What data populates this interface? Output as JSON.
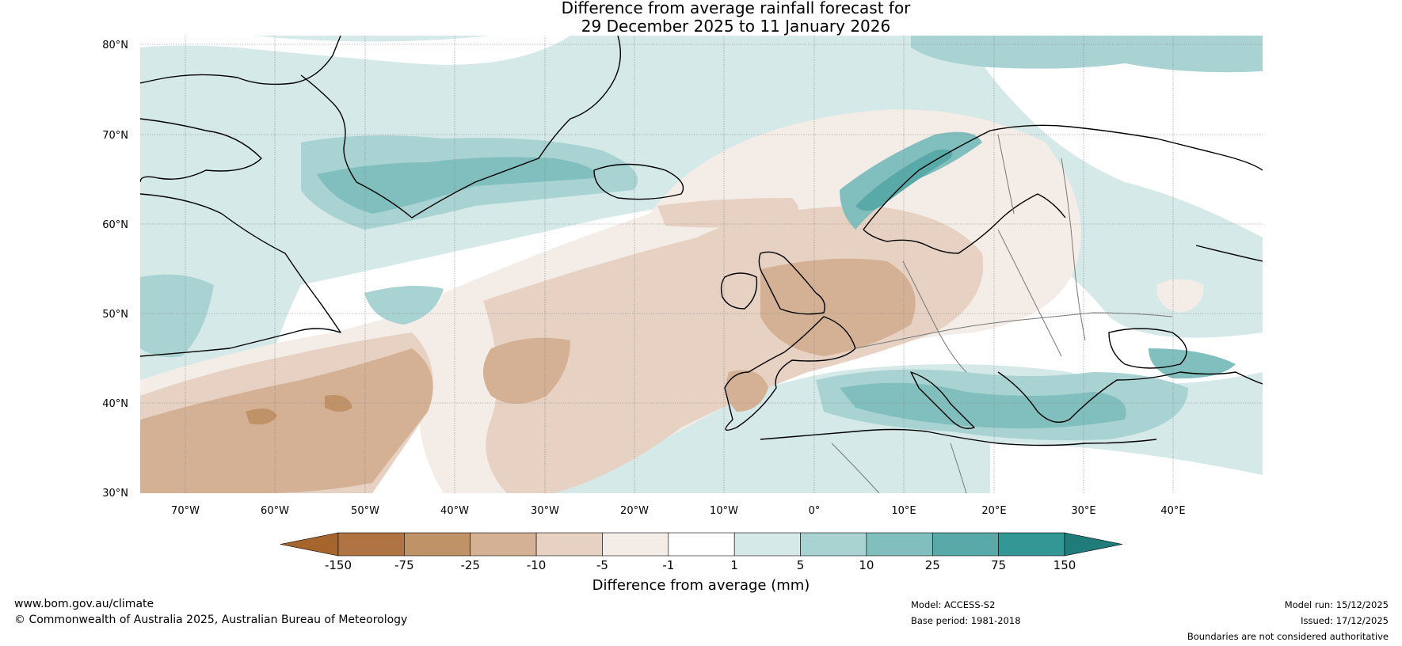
{
  "title_line1": "Difference from average rainfall forecast for",
  "title_line2": "29 December 2025 to 11 January 2026",
  "lat_labels": [
    "80°N",
    "70°N",
    "60°N",
    "50°N",
    "40°N",
    "30°N"
  ],
  "lon_labels": [
    "70°W",
    "60°W",
    "50°W",
    "40°W",
    "30°W",
    "20°W",
    "10°W",
    "0°",
    "10°E",
    "20°E",
    "30°E",
    "40°E"
  ],
  "colorbar": {
    "title": "Difference from average (mm)",
    "boundaries": [
      "-150",
      "-75",
      "-25",
      "-10",
      "-5",
      "-1",
      "1",
      "5",
      "10",
      "25",
      "75",
      "150"
    ],
    "colors": [
      "#a6652c",
      "#b07444",
      "#c09268",
      "#d4b194",
      "#e6d1c2",
      "#f4ece6",
      "#ffffff",
      "#d5e9e8",
      "#a9d3d2",
      "#80bfbe",
      "#58a9a8",
      "#339795",
      "#1f7c7a"
    ]
  },
  "footer": {
    "url": "www.bom.gov.au/climate",
    "copyright": "© Commonwealth of Australia 2025, Australian Bureau of Meteorology",
    "model": "Model: ACCESS-S2",
    "base_period": "Base period: 1981-2018",
    "model_run": "Model run: 15/12/2025",
    "issued": "Issued: 17/12/2025",
    "disclaimer": "Boundaries are not considered authoritative"
  }
}
